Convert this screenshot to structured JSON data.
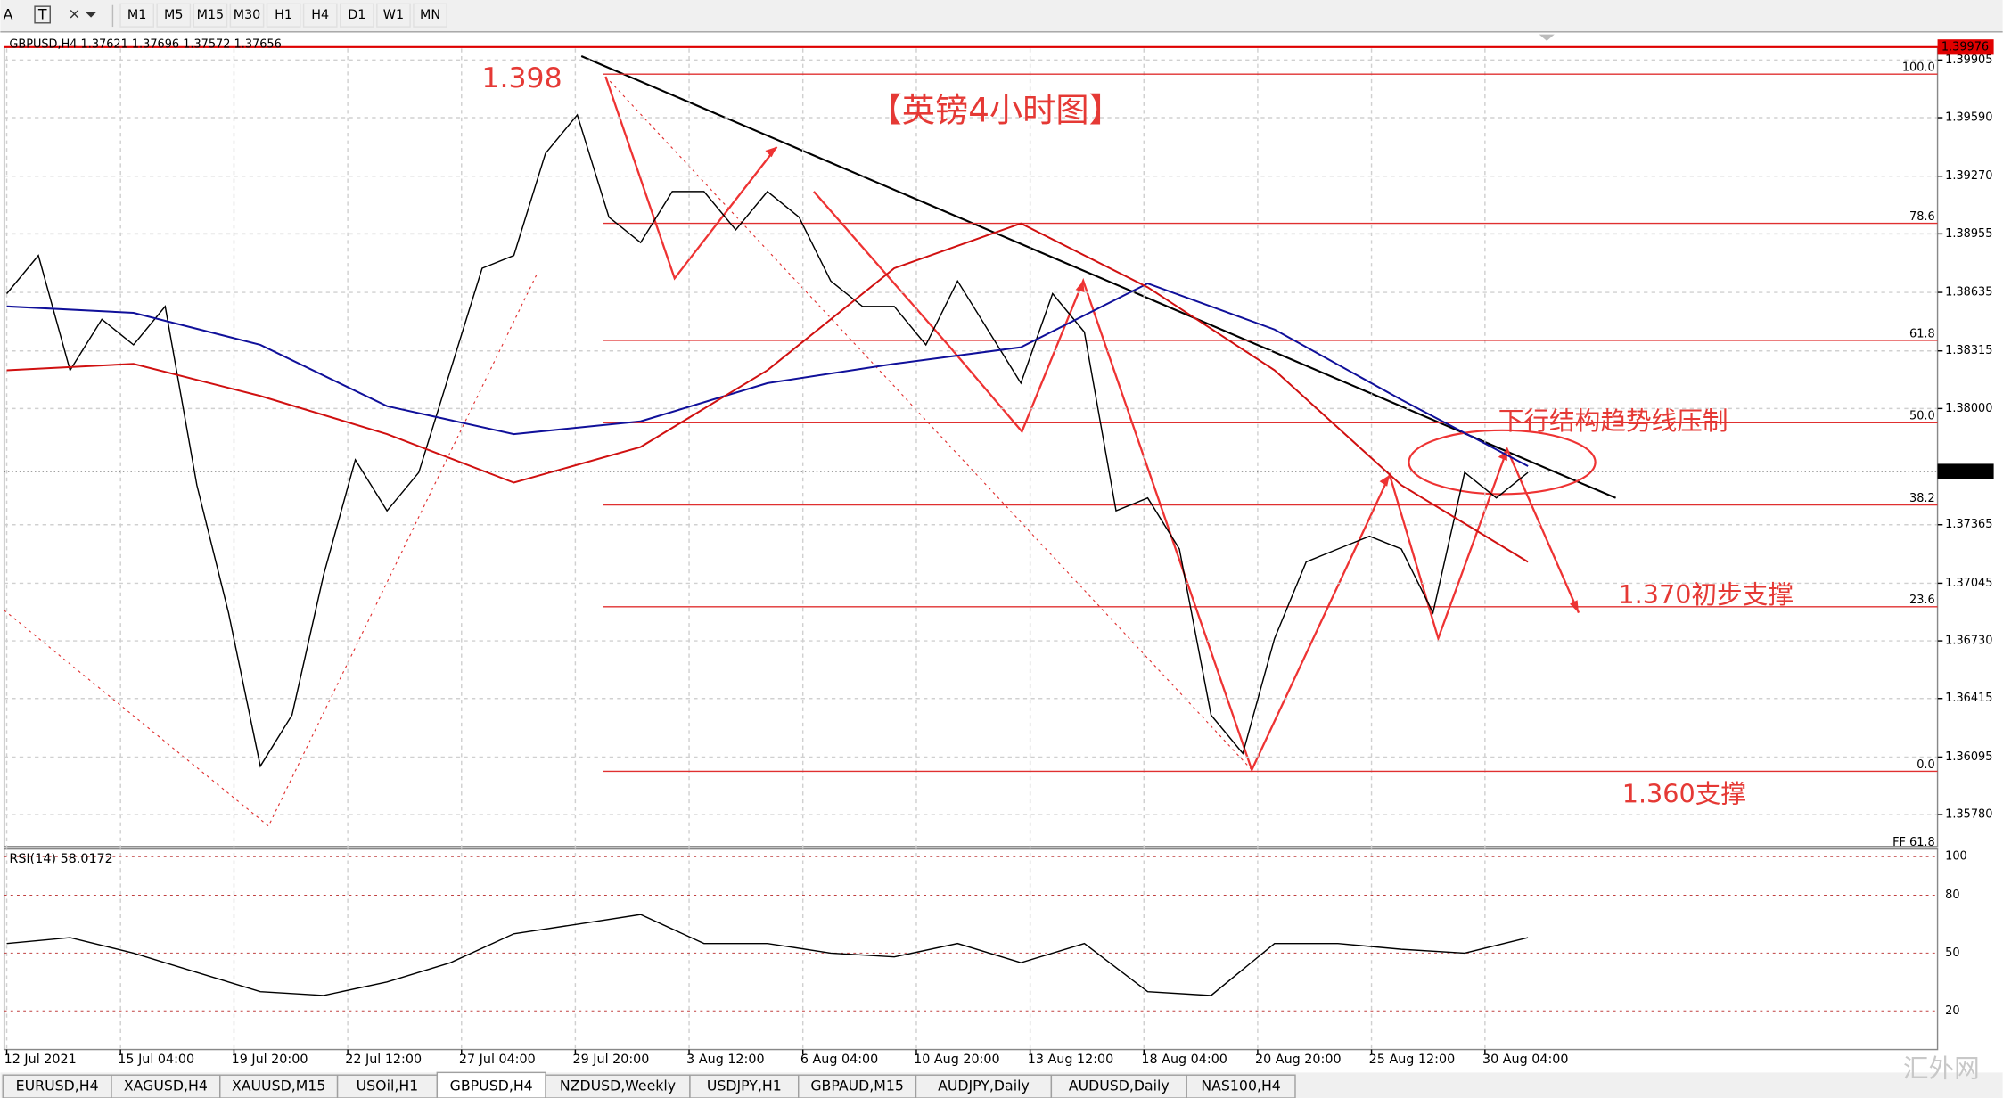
{
  "toolbar": {
    "text_tools": [
      "A",
      "T"
    ],
    "timeframes": [
      "M1",
      "M5",
      "M15",
      "M30",
      "H1",
      "H4",
      "D1",
      "W1",
      "MN"
    ]
  },
  "chart_data": [
    {
      "type": "line",
      "header": "GBPUSD,H4  1.37621 1.37696 1.37572 1.37656",
      "xlim": [
        0,
        61
      ],
      "ylim": [
        1.35613,
        1.39968
      ],
      "xticks": [
        {
          "value": 0,
          "label": "12 Jul 2021"
        },
        {
          "value": 3.59,
          "label": "15 Jul 04:00"
        },
        {
          "value": 7.17,
          "label": "19 Jul 20:00"
        },
        {
          "value": 10.76,
          "label": "22 Jul 12:00"
        },
        {
          "value": 14.35,
          "label": "27 Jul 04:00"
        },
        {
          "value": 17.94,
          "label": "29 Jul 20:00"
        },
        {
          "value": 21.53,
          "label": "3 Aug 12:00"
        },
        {
          "value": 25.12,
          "label": "6 Aug 04:00"
        },
        {
          "value": 28.7,
          "label": "10 Aug 20:00"
        },
        {
          "value": 32.29,
          "label": "13 Aug 12:00"
        },
        {
          "value": 35.88,
          "label": "18 Aug 04:00"
        },
        {
          "value": 39.47,
          "label": "20 Aug 20:00"
        },
        {
          "value": 43.06,
          "label": "25 Aug 12:00"
        },
        {
          "value": 46.64,
          "label": "30 Aug 04:00"
        }
      ],
      "yticks": [
        {
          "value": 1.39905,
          "label": "1.39905"
        },
        {
          "value": 1.3959,
          "label": "1.39590"
        },
        {
          "value": 1.3927,
          "label": "1.39270"
        },
        {
          "value": 1.38955,
          "label": "1.38955"
        },
        {
          "value": 1.38635,
          "label": "1.38635"
        },
        {
          "value": 1.38315,
          "label": "1.38315"
        },
        {
          "value": 1.38,
          "label": "1.38000"
        },
        {
          "value": 1.37365,
          "label": "1.37365"
        },
        {
          "value": 1.37045,
          "label": "1.37045"
        },
        {
          "value": 1.3673,
          "label": "1.36730"
        },
        {
          "value": 1.36415,
          "label": "1.36415"
        },
        {
          "value": 1.36095,
          "label": "1.36095"
        },
        {
          "value": 1.3578,
          "label": "1.35780"
        }
      ],
      "grid": true,
      "price_markers": [
        {
          "value": 1.39976,
          "color": "#e00000"
        },
        {
          "value": 1.37656,
          "color": "#000000"
        }
      ],
      "fib": {
        "high": 1.39828,
        "low": 1.36017,
        "color": "#e03030",
        "levels": [
          {
            "value": 100,
            "label": "100.0"
          },
          {
            "value": 78.6,
            "label": "78.6"
          },
          {
            "value": 61.8,
            "label": "61.8"
          },
          {
            "value": 50,
            "label": "50.0"
          },
          {
            "value": 38.2,
            "label": "38.2"
          },
          {
            "value": 23.6,
            "label": "23.6"
          },
          {
            "value": 0,
            "label": "0.0"
          }
        ],
        "extension_label": "FF 61.8"
      },
      "annotations": [
        "1.398",
        "【英镑4小时图】",
        "下行结构趋势线压制",
        "1.370初步支撑",
        "1.360支撑"
      ],
      "series": [
        {
          "name": "GBPUSD",
          "color": "#000000",
          "x": [
            0,
            1,
            2,
            3,
            4,
            5,
            6,
            7,
            8,
            9,
            10,
            11,
            12,
            13,
            14,
            15,
            16,
            17,
            18,
            19,
            20,
            21,
            22,
            23,
            24,
            25,
            26,
            27,
            28,
            29,
            30,
            31,
            32,
            33,
            34,
            35,
            36,
            37,
            38,
            39,
            40,
            41,
            42,
            43,
            44,
            45,
            46,
            47,
            48
          ],
          "values": [
            1.38628,
            1.38837,
            1.38209,
            1.38488,
            1.38348,
            1.38558,
            1.37581,
            1.36883,
            1.36045,
            1.36324,
            1.37092,
            1.3772,
            1.37441,
            1.37651,
            1.38209,
            1.38767,
            1.38837,
            1.39395,
            1.39605,
            1.39046,
            1.38907,
            1.39186,
            1.39186,
            1.38977,
            1.39186,
            1.39046,
            1.38697,
            1.38558,
            1.38558,
            1.38348,
            1.38697,
            1.38418,
            1.38139,
            1.38628,
            1.38418,
            1.37441,
            1.37511,
            1.37232,
            1.36324,
            1.36115,
            1.36743,
            1.37162,
            1.37232,
            1.37302,
            1.37232,
            1.36883,
            1.37651,
            1.37511,
            1.37651
          ]
        },
        {
          "name": "MA blue",
          "color": "#10109a",
          "x": [
            0,
            4,
            8,
            12,
            16,
            20,
            24,
            28,
            32,
            36,
            40,
            44,
            48
          ],
          "values": [
            1.38558,
            1.38523,
            1.38348,
            1.38013,
            1.3786,
            1.3793,
            1.38139,
            1.38244,
            1.38335,
            1.38684,
            1.38432,
            1.38048,
            1.37685
          ]
        },
        {
          "name": "MA red",
          "color": "#d01010",
          "x": [
            0,
            4,
            8,
            12,
            16,
            20,
            24,
            28,
            32,
            36,
            40,
            44,
            48
          ],
          "values": [
            1.38209,
            1.38244,
            1.38069,
            1.3786,
            1.37595,
            1.3779,
            1.38209,
            1.38767,
            1.39012,
            1.38663,
            1.38209,
            1.37581,
            1.37162
          ]
        }
      ]
    },
    {
      "type": "line",
      "label": "RSI(14) 58.0172",
      "xlim": [
        0,
        61
      ],
      "ylim": [
        0,
        100
      ],
      "yticks": [
        20,
        50,
        80,
        100
      ],
      "series": [
        {
          "name": "RSI(14)",
          "color": "#000000",
          "x": [
            0,
            2,
            4,
            6,
            8,
            10,
            12,
            14,
            16,
            18,
            20,
            22,
            24,
            26,
            28,
            30,
            32,
            34,
            36,
            38,
            40,
            42,
            44,
            46,
            48
          ],
          "values": [
            55,
            58,
            50,
            40,
            30,
            28,
            35,
            45,
            60,
            65,
            70,
            55,
            55,
            50,
            48,
            55,
            45,
            55,
            30,
            28,
            55,
            55,
            52,
            50,
            58
          ]
        }
      ]
    }
  ],
  "tabs": [
    "EURUSD,H4",
    "XAGUSD,H4",
    "XAUUSD,M15",
    "USOil,H1",
    "GBPUSD,H4",
    "NZDUSD,Weekly",
    "USDJPY,H1",
    "GBPAUD,M15",
    "AUDJPY,Daily",
    "AUDUSD,Daily",
    "NAS100,H4"
  ],
  "active_tab": 4,
  "watermark": "汇外网"
}
